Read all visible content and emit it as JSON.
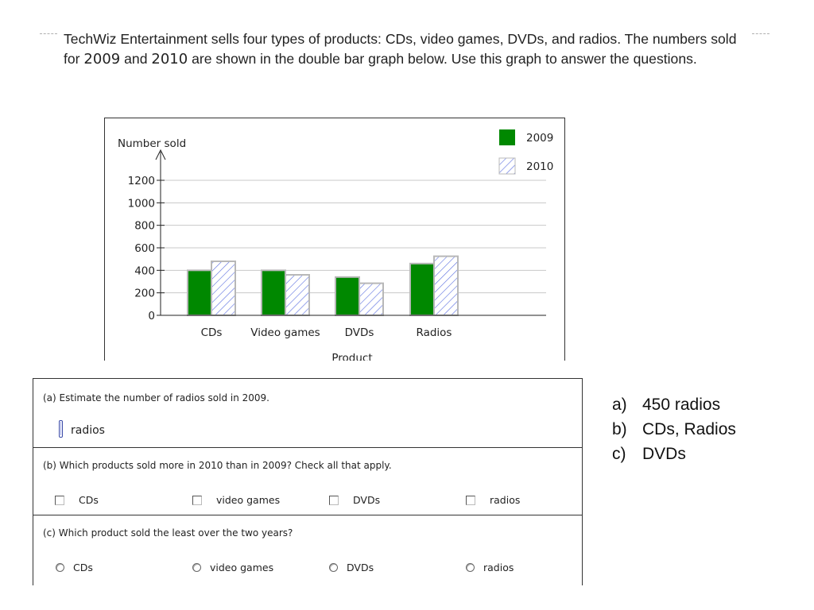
{
  "intro": {
    "part1": "TechWiz Entertainment sells four types of products: CDs, video games, DVDs, and radios. The numbers sold for ",
    "year1": "2009",
    "and": " and ",
    "year2": "2010",
    "part2": " are shown in the double bar graph below. Use this graph to answer the questions."
  },
  "chart_data": {
    "type": "bar",
    "ylabel": "Number sold",
    "xlabel": "Product",
    "categories": [
      "CDs",
      "Video games",
      "DVDs",
      "Radios"
    ],
    "series": [
      {
        "name": "2009",
        "values": [
          400,
          400,
          340,
          460
        ],
        "color": "#008800",
        "pattern": "solid"
      },
      {
        "name": "2010",
        "values": [
          480,
          360,
          285,
          525
        ],
        "color": "#5a6ee0",
        "pattern": "hatch"
      }
    ],
    "ylim": [
      0,
      1200
    ],
    "yticks": [
      0,
      200,
      400,
      600,
      800,
      1000,
      1200
    ],
    "grid": true,
    "legend": "top-right"
  },
  "questions": {
    "a": {
      "prompt": "(a) Estimate the number of radios sold in 2009.",
      "value": "",
      "unit": "radios"
    },
    "b": {
      "prompt": "(b) Which products sold more in 2010 than in 2009? Check all that apply.",
      "options": [
        "CDs",
        "video games",
        "DVDs",
        "radios"
      ]
    },
    "c": {
      "prompt": "(c) Which product sold the least over the two years?",
      "options": [
        "CDs",
        "video games",
        "DVDs",
        "radios"
      ]
    }
  },
  "answer_key": [
    {
      "mark": "a)",
      "text": "450 radios"
    },
    {
      "mark": "b)",
      "text": "CDs, Radios"
    },
    {
      "mark": "c)",
      "text": "DVDs"
    }
  ]
}
